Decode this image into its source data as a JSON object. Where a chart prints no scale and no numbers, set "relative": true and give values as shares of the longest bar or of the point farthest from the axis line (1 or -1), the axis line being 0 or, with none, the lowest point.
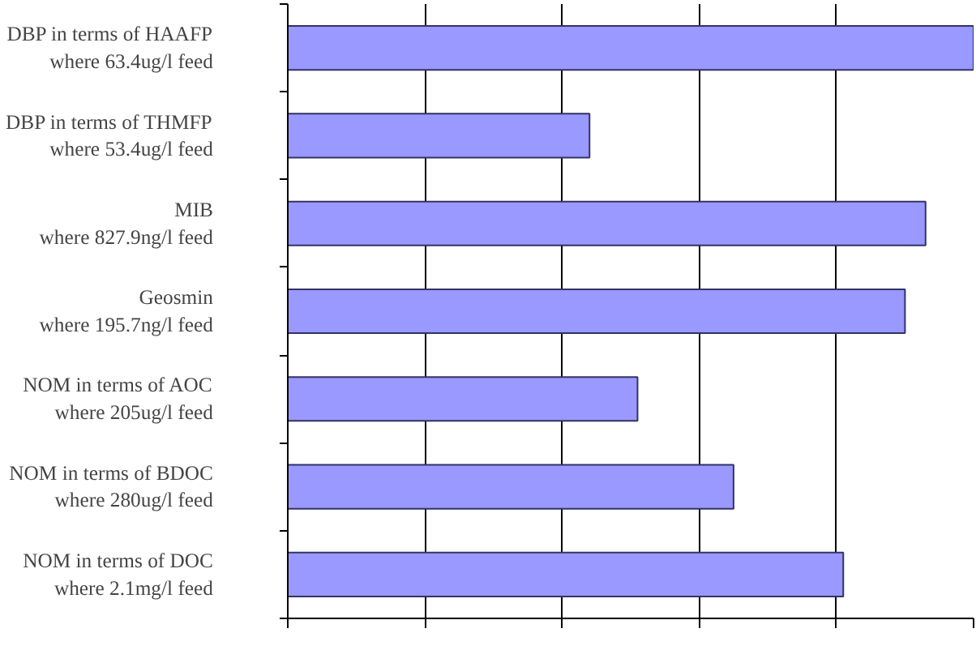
{
  "chart_data": {
    "type": "bar",
    "orientation": "horizontal",
    "relative": true,
    "grid": "x",
    "color": "#9999ff",
    "categories": [
      "DBP in terms of HAAFP\nwhere 63.4ug/l feed",
      "DBP in terms of THMFP\nwhere 53.4ug/l feed",
      "MIB\nwhere 827.9ng/l feed",
      "Geosmin\nwhere 195.7ng/l feed",
      "NOM in terms of AOC\nwhere 205ug/l feed",
      "NOM in terms of BDOC\nwhere 280ug/l feed",
      "NOM in terms of DOC\nwhere 2.1mg/l feed"
    ],
    "values": [
      1,
      0.44,
      0.93,
      0.9,
      0.51,
      0.65,
      0.81
    ]
  }
}
